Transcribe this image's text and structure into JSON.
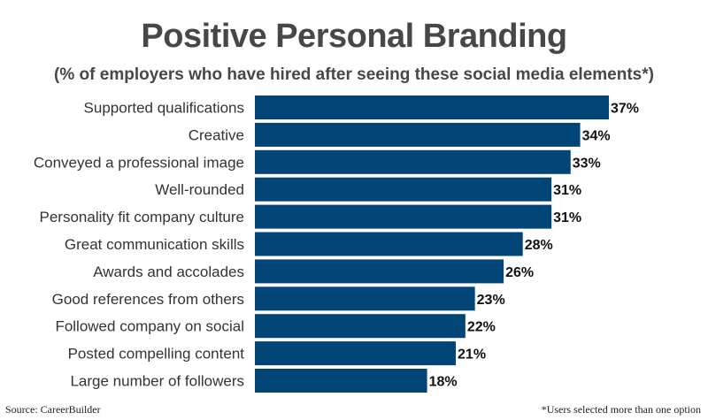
{
  "chart_data": {
    "type": "bar",
    "orientation": "horizontal",
    "title": "Positive Personal Branding",
    "subtitle": "(% of employers who have hired after seeing these social media elements*)",
    "categories": [
      "Supported qualifications",
      "Creative",
      "Conveyed a professional image",
      "Well-rounded",
      "Personality fit company culture",
      "Great communication skills",
      "Awards and accolades",
      "Good references from others",
      "Followed company on social",
      "Posted compelling content",
      "Large number of followers"
    ],
    "values": [
      37,
      34,
      33,
      31,
      31,
      28,
      26,
      23,
      22,
      21,
      18
    ],
    "value_labels": [
      "37%",
      "34%",
      "33%",
      "31%",
      "31%",
      "28%",
      "26%",
      "23%",
      "22%",
      "21%",
      "18%"
    ],
    "xlim": [
      0,
      37
    ],
    "bar_color": "#004575",
    "grid": false,
    "legend": "none"
  },
  "footer": {
    "source": "Source: CareerBuilder",
    "note": "*Users selected more than one option"
  }
}
